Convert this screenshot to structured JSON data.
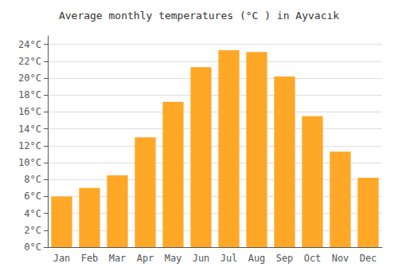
{
  "chart_data": {
    "type": "bar",
    "title": "Average monthly temperatures (°C ) in Ayvacık",
    "categories": [
      "Jan",
      "Feb",
      "Mar",
      "Apr",
      "May",
      "Jun",
      "Jul",
      "Aug",
      "Sep",
      "Oct",
      "Nov",
      "Dec"
    ],
    "values": [
      6.0,
      7.0,
      8.5,
      13.0,
      17.2,
      21.3,
      23.3,
      23.1,
      20.2,
      15.5,
      11.3,
      8.2
    ],
    "color": "#FFA726",
    "ylim": [
      0,
      25
    ],
    "yticks": [
      {
        "value": 0,
        "label": "0°C"
      },
      {
        "value": 2,
        "label": "2°C"
      },
      {
        "value": 4,
        "label": "4°C"
      },
      {
        "value": 6,
        "label": "6°C"
      },
      {
        "value": 8,
        "label": "8°C"
      },
      {
        "value": 10,
        "label": "10°C"
      },
      {
        "value": 12,
        "label": "12°C"
      },
      {
        "value": 14,
        "label": "14°C"
      },
      {
        "value": 16,
        "label": "16°C"
      },
      {
        "value": 18,
        "label": "18°C"
      },
      {
        "value": 20,
        "label": "20°C"
      },
      {
        "value": 22,
        "label": "22°C"
      },
      {
        "value": 24,
        "label": "24°C"
      }
    ],
    "grid": true
  }
}
